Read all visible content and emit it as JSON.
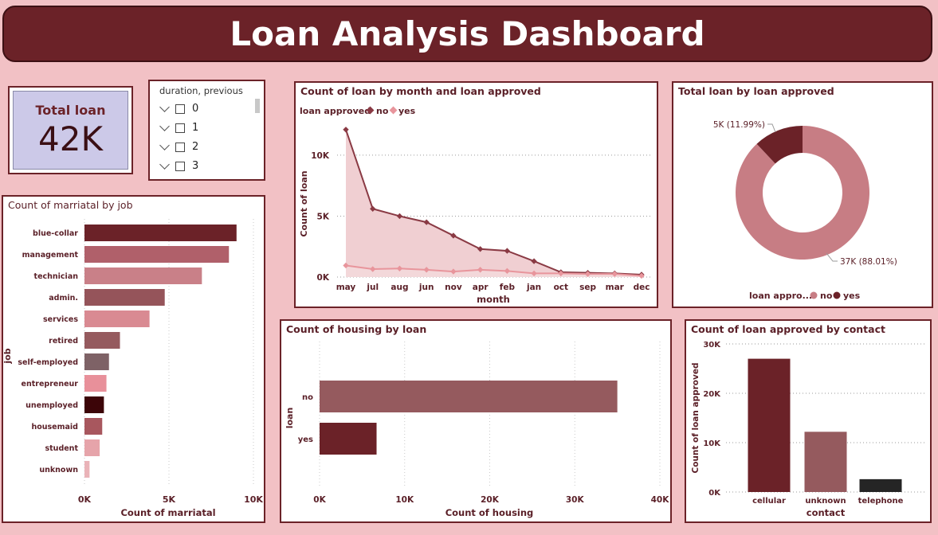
{
  "header": {
    "title": "Loan Analysis Dashboard"
  },
  "kpi": {
    "label": "Total loan",
    "value": "42K"
  },
  "slicer": {
    "title": "duration, previous",
    "items": [
      "0",
      "1",
      "2",
      "3"
    ]
  },
  "marital_chart": {
    "title": "Count of marriatal by job",
    "ylabel": "job",
    "xlabel": "Count of marriatal",
    "xticks": [
      "0K",
      "5K",
      "10K"
    ]
  },
  "month_chart": {
    "title": "Count of loan by month and loan approved",
    "legend_title": "loan approved",
    "legend_no": "no",
    "legend_yes": "yes",
    "ylabel": "Count of loan",
    "xlabel": "month",
    "yticks": [
      "0K",
      "5K",
      "10K"
    ]
  },
  "donut_chart": {
    "title": "Total loan by loan approved",
    "label_no": "37K (88.01%)",
    "label_yes": "5K (11.99%)",
    "legend_title": "loan appro...",
    "legend_no": "no",
    "legend_yes": "yes"
  },
  "housing_chart": {
    "title": "Count of housing by loan",
    "ylabel": "loan",
    "xlabel": "Count of housing",
    "xticks": [
      "0K",
      "10K",
      "20K",
      "30K",
      "40K"
    ]
  },
  "contact_chart": {
    "title": "Count of loan approved by contact",
    "ylabel": "Count of loan approved",
    "xlabel": "contact",
    "yticks": [
      "0K",
      "10K",
      "20K",
      "30K"
    ]
  },
  "chart_data": [
    {
      "type": "bar",
      "orientation": "horizontal",
      "title": "Count of marriatal by job",
      "xlabel": "Count of marriatal",
      "ylabel": "job",
      "categories": [
        "blue-collar",
        "management",
        "technician",
        "admin.",
        "services",
        "retired",
        "self-employed",
        "entrepreneur",
        "unemployed",
        "housemaid",
        "student",
        "unknown"
      ],
      "values": [
        9000,
        8550,
        6950,
        4750,
        3850,
        2100,
        1450,
        1300,
        1150,
        1050,
        900,
        300
      ],
      "colors": [
        "#6b2228",
        "#b0606a",
        "#c98088",
        "#95545a",
        "#d98a92",
        "#955a5e",
        "#7e6266",
        "#e8909a",
        "#3c0508",
        "#a8575e",
        "#e6a4aa",
        "#eab3b8"
      ],
      "xlim": [
        0,
        10000
      ],
      "grid": true
    },
    {
      "type": "line",
      "title": "Count of loan by month and loan approved",
      "xlabel": "month",
      "ylabel": "Count of loan",
      "categories": [
        "may",
        "jul",
        "aug",
        "jun",
        "nov",
        "apr",
        "feb",
        "jan",
        "oct",
        "sep",
        "mar",
        "dec"
      ],
      "series": [
        {
          "name": "no",
          "values": [
            12100,
            5600,
            5000,
            4500,
            3400,
            2300,
            2150,
            1300,
            400,
            350,
            300,
            200
          ],
          "color": "#8a3a44"
        },
        {
          "name": "yes",
          "values": [
            950,
            650,
            700,
            600,
            450,
            600,
            500,
            300,
            300,
            250,
            250,
            100
          ],
          "color": "#e8959c"
        }
      ],
      "ylim": [
        0,
        13000
      ],
      "legend": "top-left",
      "grid": true
    },
    {
      "type": "pie",
      "variant": "donut",
      "title": "Total loan by loan approved",
      "categories": [
        "no",
        "yes"
      ],
      "values": [
        88.01,
        11.99
      ],
      "labels": [
        "37K (88.01%)",
        "5K (11.99%)"
      ],
      "colors": [
        "#c77d84",
        "#6b2228"
      ],
      "legend": "bottom"
    },
    {
      "type": "bar",
      "orientation": "horizontal",
      "title": "Count of housing by loan",
      "xlabel": "Count of housing",
      "ylabel": "loan",
      "categories": [
        "no",
        "yes"
      ],
      "values": [
        35000,
        6700
      ],
      "colors": [
        "#955a5e",
        "#6b2228"
      ],
      "xlim": [
        0,
        40000
      ],
      "grid": true
    },
    {
      "type": "bar",
      "title": "Count of loan approved by contact",
      "xlabel": "contact",
      "ylabel": "Count of loan approved",
      "categories": [
        "cellular",
        "unknown",
        "telephone"
      ],
      "values": [
        27000,
        12200,
        2600
      ],
      "colors": [
        "#6b2228",
        "#955a5e",
        "#252525"
      ],
      "ylim": [
        0,
        30000
      ],
      "grid": true
    }
  ]
}
